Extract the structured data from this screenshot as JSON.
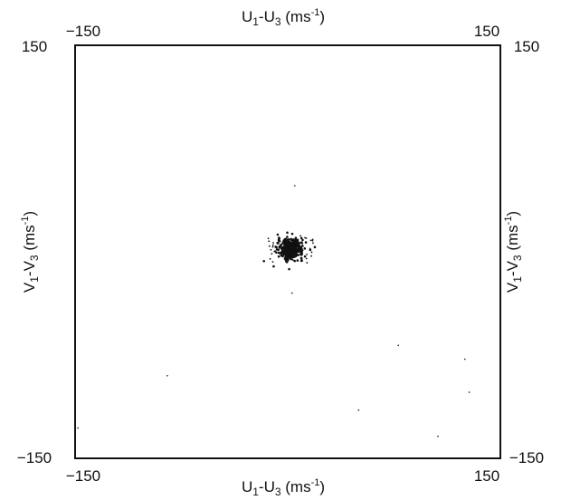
{
  "chart_data": {
    "type": "scatter",
    "title": "",
    "xlabel": {
      "main": "U",
      "sub1": "1",
      "mid": "-U",
      "sub2": "3",
      "unit": " (ms",
      "exp": "-1",
      "close": ")"
    },
    "ylabel": {
      "main": "V",
      "sub1": "1",
      "mid": "-V",
      "sub2": "3",
      "unit": " (ms",
      "exp": "-1",
      "close": ")"
    },
    "xlim": [
      -150,
      150
    ],
    "ylim": [
      -150,
      150
    ],
    "grid": false,
    "ticks": {
      "top_left": "−150",
      "top_right": "150",
      "bottom_left": "−150",
      "bottom_right": "150",
      "left_top": "150",
      "left_bottom": "−150",
      "right_top": "150",
      "right_bottom": "−150"
    },
    "cluster": {
      "x_center": 2,
      "y_center": 2,
      "spread": 4
    },
    "stray_points": [
      {
        "x": 3,
        "y": -30
      },
      {
        "x": 5,
        "y": 48
      },
      {
        "x": -85,
        "y": -90
      },
      {
        "x": 78,
        "y": -68
      },
      {
        "x": 50,
        "y": -115
      },
      {
        "x": 106,
        "y": -134
      },
      {
        "x": 125,
        "y": -78
      },
      {
        "x": 128,
        "y": -102
      },
      {
        "x": -148,
        "y": -128
      }
    ],
    "point_color": "#111111"
  }
}
